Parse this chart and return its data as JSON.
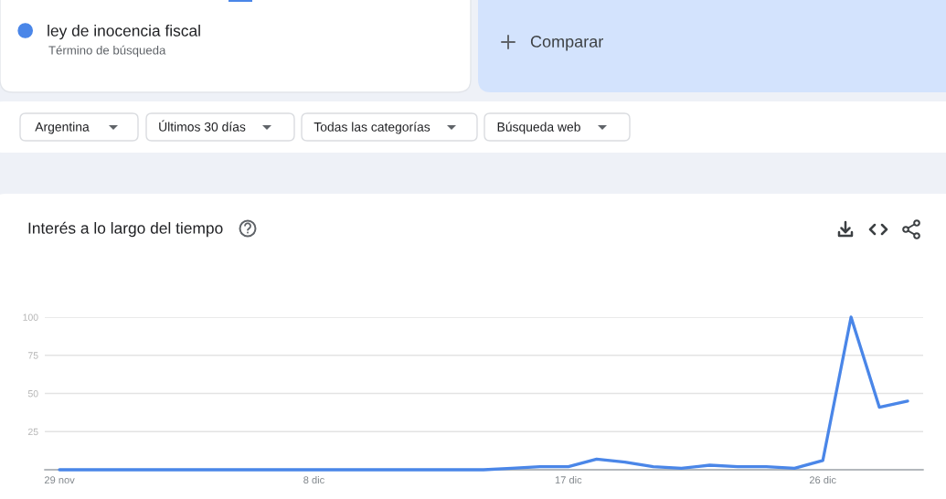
{
  "chart_data": {
    "type": "line",
    "title": "Interés a lo largo del tiempo",
    "categories": [
      "29 nov",
      null,
      null,
      null,
      null,
      null,
      null,
      null,
      null,
      "8 dic",
      null,
      null,
      null,
      null,
      null,
      null,
      null,
      null,
      "17 dic",
      null,
      null,
      null,
      null,
      null,
      null,
      null,
      null,
      "26 dic",
      null,
      null,
      null
    ],
    "series": [
      {
        "name": "ley de inocencia fiscal",
        "color": "#4a86e8",
        "values": [
          0,
          0,
          0,
          0,
          0,
          0,
          0,
          0,
          0,
          0,
          0,
          0,
          0,
          0,
          0,
          0,
          1,
          2,
          2,
          7,
          5,
          2,
          1,
          3,
          2,
          2,
          1,
          6,
          100,
          41,
          45
        ]
      }
    ],
    "ylim": [
      0,
      100
    ],
    "yticks": [
      25,
      50,
      75,
      100
    ],
    "grid": "y",
    "legend": "top left",
    "annotations": [
      "Término de búsqueda",
      "Comparar",
      "Argentina",
      "Últimos 30 días",
      "Todas las categorías",
      "Búsqueda web"
    ]
  }
}
